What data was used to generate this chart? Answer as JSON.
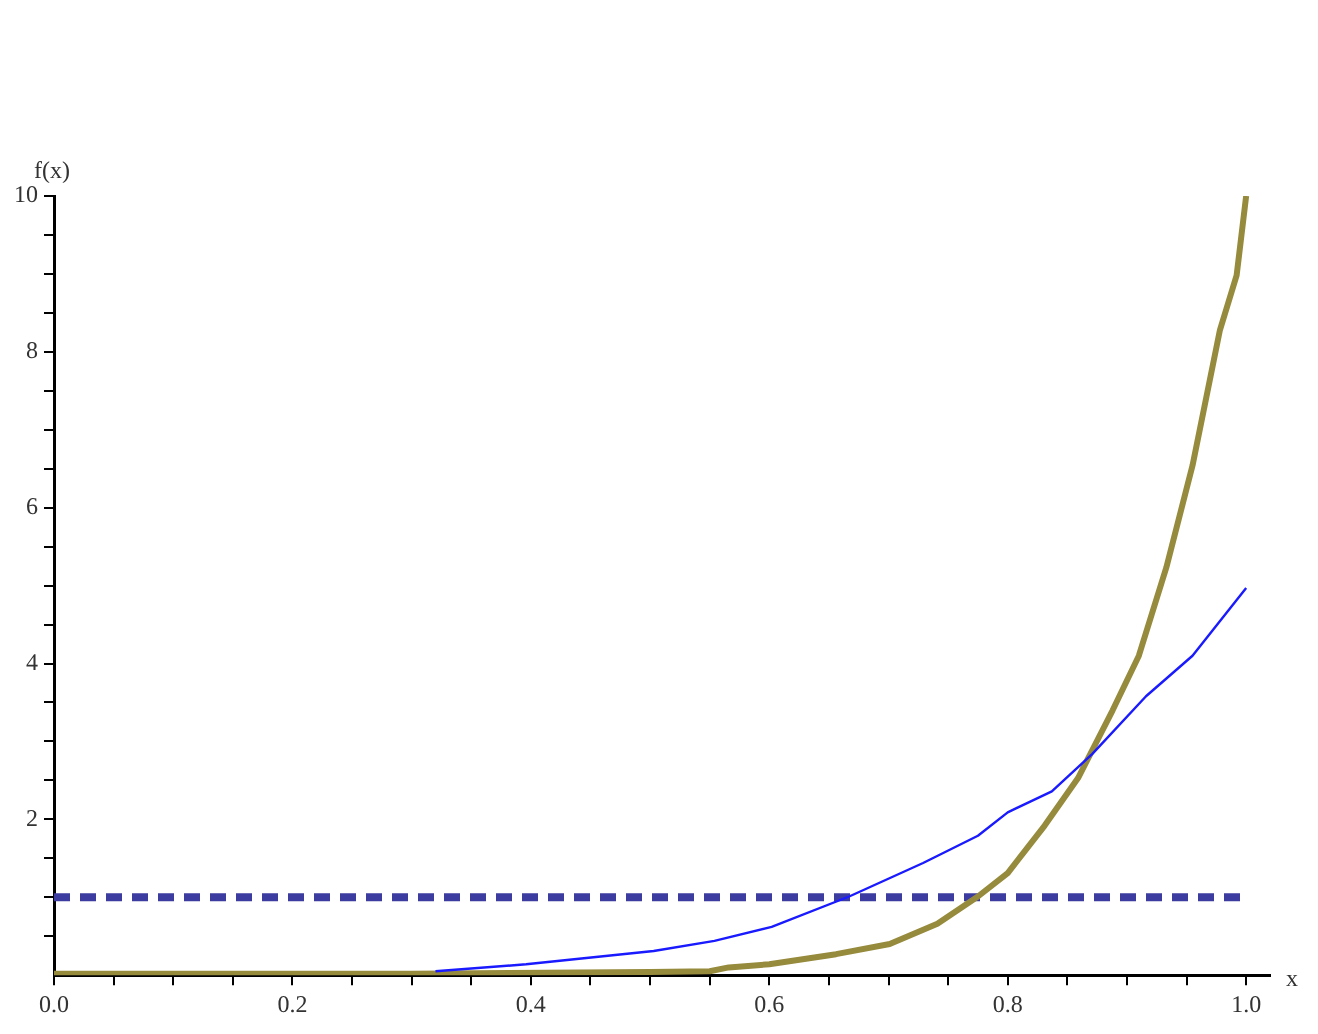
{
  "chart_data": {
    "type": "line",
    "xlabel": "x",
    "ylabel": "f(x)",
    "xlim": [
      0,
      1.02
    ],
    "ylim": [
      0,
      10
    ],
    "xticks": [
      {
        "value": 0,
        "label": "0.0"
      },
      {
        "value": 0.05,
        "label": null
      },
      {
        "value": 0.1,
        "label": null
      },
      {
        "value": 0.15,
        "label": null
      },
      {
        "value": 0.2,
        "label": "0.2"
      },
      {
        "value": 0.25,
        "label": null
      },
      {
        "value": 0.3,
        "label": null
      },
      {
        "value": 0.35,
        "label": null
      },
      {
        "value": 0.4,
        "label": "0.4"
      },
      {
        "value": 0.45,
        "label": null
      },
      {
        "value": 0.5,
        "label": null
      },
      {
        "value": 0.55,
        "label": null
      },
      {
        "value": 0.6,
        "label": "0.6"
      },
      {
        "value": 0.65,
        "label": null
      },
      {
        "value": 0.7,
        "label": null
      },
      {
        "value": 0.75,
        "label": null
      },
      {
        "value": 0.8,
        "label": "0.8"
      },
      {
        "value": 0.85,
        "label": null
      },
      {
        "value": 0.9,
        "label": null
      },
      {
        "value": 0.95,
        "label": null
      },
      {
        "value": 1,
        "label": "1.0"
      }
    ],
    "yticks": [
      {
        "value": 0.5,
        "label": null
      },
      {
        "value": 1,
        "label": null
      },
      {
        "value": 1.5,
        "label": null
      },
      2,
      {
        "value": 2.5,
        "label": null
      },
      {
        "value": 3,
        "label": null
      },
      {
        "value": 3.5,
        "label": null
      },
      4,
      {
        "value": 4.5,
        "label": null
      },
      {
        "value": 5,
        "label": null
      },
      {
        "value": 5.5,
        "label": null
      },
      6,
      {
        "value": 6.5,
        "label": null
      },
      {
        "value": 7,
        "label": null
      },
      {
        "value": 7.5,
        "label": null
      },
      8,
      {
        "value": 8.5,
        "label": null
      },
      {
        "value": 9,
        "label": null
      },
      {
        "value": 9.5,
        "label": null
      },
      10
    ],
    "grid": false,
    "legend": false,
    "marker": "none",
    "ref_lines": [
      {
        "axis": "y",
        "value": 1,
        "color": "#3c3ca0",
        "line_style": "dashed"
      }
    ],
    "series": [
      {
        "color": "#1a1aff",
        "x": [
          0.32,
          0.396,
          0.503,
          0.554,
          0.602,
          0.667,
          0.729,
          0.775,
          0.8,
          0.837,
          0.871,
          0.916,
          0.955,
          1.0
        ],
        "values": [
          0.05,
          0.14,
          0.31,
          0.44,
          0.62,
          1.01,
          1.44,
          1.79,
          2.09,
          2.36,
          2.84,
          3.58,
          4.1,
          4.97
        ]
      },
      {
        "color": "#968a3c",
        "x": [
          0,
          0.3,
          0.5,
          0.55,
          0.566,
          0.6,
          0.656,
          0.701,
          0.741,
          0.775,
          0.8,
          0.831,
          0.859,
          0.888,
          0.91,
          0.933,
          0.955,
          0.978,
          0.992,
          1.0
        ],
        "values": [
          0.02,
          0.02,
          0.04,
          0.05,
          0.1,
          0.14,
          0.27,
          0.4,
          0.66,
          1.01,
          1.31,
          1.92,
          2.53,
          3.4,
          4.1,
          5.23,
          6.54,
          8.28,
          8.98,
          10
        ]
      }
    ]
  }
}
